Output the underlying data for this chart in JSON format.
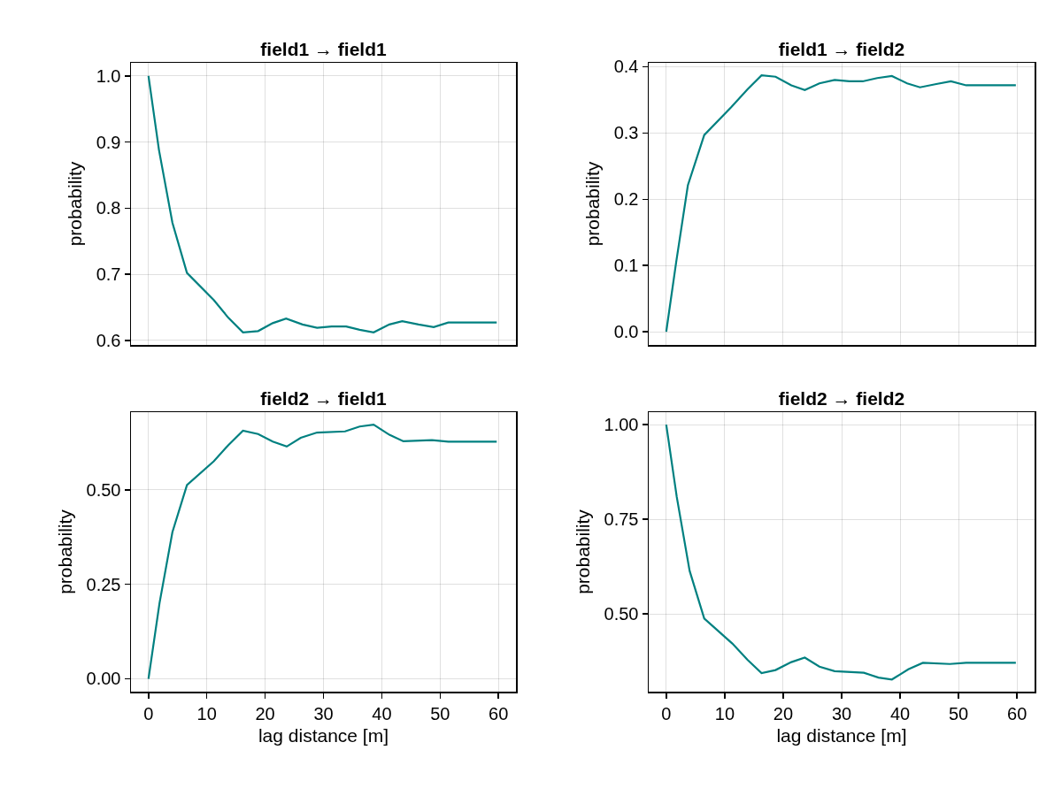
{
  "chart_data": [
    {
      "type": "line",
      "title": "field1 → field1",
      "ylabel": "probability",
      "xlim": [
        -3,
        63
      ],
      "xticks": [
        0,
        10,
        20,
        30,
        40,
        50,
        60
      ],
      "ylim": [
        0.593,
        1.02
      ],
      "yticks": [
        {
          "value": 0.6,
          "label": "0.6"
        },
        {
          "value": 0.7,
          "label": "0.7"
        },
        {
          "value": 0.8,
          "label": "0.8"
        },
        {
          "value": 0.9,
          "label": "0.9"
        },
        {
          "value": 1.0,
          "label": "1.0"
        }
      ],
      "grid": true,
      "tick_labels": "y",
      "marker": "none",
      "line_style": "solid",
      "series": [
        {
          "color": "#008080",
          "x": [
            0,
            1.8,
            4.1,
            6.6,
            11.2,
            13.7,
            16.2,
            18.8,
            21.3,
            23.6,
            26.4,
            28.9,
            31.4,
            33.9,
            36.2,
            38.6,
            41.3,
            43.5,
            46.3,
            48.9,
            51.4,
            59.7
          ],
          "values": [
            1.0,
            0.888,
            0.778,
            0.702,
            0.661,
            0.634,
            0.612,
            0.614,
            0.626,
            0.633,
            0.624,
            0.619,
            0.621,
            0.621,
            0.616,
            0.612,
            0.624,
            0.629,
            0.624,
            0.62,
            0.627,
            0.627
          ]
        }
      ]
    },
    {
      "type": "line",
      "title": "field1 → field2",
      "ylabel": "probability",
      "xlim": [
        -3,
        63
      ],
      "xticks": [
        0,
        10,
        20,
        30,
        40,
        50,
        60
      ],
      "ylim": [
        -0.02,
        0.406
      ],
      "yticks": [
        {
          "value": 0,
          "label": "0.0"
        },
        {
          "value": 0.1,
          "label": "0.1"
        },
        {
          "value": 0.2,
          "label": "0.2"
        },
        {
          "value": 0.3,
          "label": "0.3"
        },
        {
          "value": 0.4,
          "label": "0.4"
        }
      ],
      "grid": true,
      "tick_labels": "y",
      "marker": "none",
      "line_style": "solid",
      "series": [
        {
          "color": "#008080",
          "x": [
            0,
            1.7,
            3.7,
            6.5,
            11.1,
            13.9,
            16.3,
            18.7,
            21.4,
            23.7,
            26.2,
            28.8,
            31.3,
            33.6,
            36.1,
            38.6,
            41.2,
            43.4,
            46.2,
            48.7,
            51.3,
            59.8
          ],
          "values": [
            0,
            0.105,
            0.221,
            0.297,
            0.339,
            0.366,
            0.387,
            0.385,
            0.372,
            0.365,
            0.375,
            0.38,
            0.378,
            0.378,
            0.383,
            0.386,
            0.375,
            0.369,
            0.374,
            0.378,
            0.372,
            0.372
          ]
        }
      ]
    },
    {
      "type": "line",
      "title": "field2 → field1",
      "xlabel": "lag distance [m]",
      "ylabel": "probability",
      "xlim": [
        -3,
        63
      ],
      "xticks": [
        0,
        10,
        20,
        30,
        40,
        50,
        60
      ],
      "ylim": [
        -0.034,
        0.706
      ],
      "yticks": [
        {
          "value": 0,
          "label": "0.00"
        },
        {
          "value": 0.25,
          "label": "0.25"
        },
        {
          "value": 0.5,
          "label": "0.50"
        }
      ],
      "grid": true,
      "marker": "none",
      "line_style": "solid",
      "series": [
        {
          "color": "#008080",
          "x": [
            0,
            1.9,
            4.1,
            6.6,
            11.2,
            13.7,
            16.2,
            18.8,
            21.3,
            23.7,
            26.1,
            28.9,
            33.7,
            36.2,
            38.6,
            41.3,
            43.7,
            48.6,
            51.4,
            59.7
          ],
          "values": [
            0,
            0.201,
            0.388,
            0.513,
            0.576,
            0.619,
            0.657,
            0.648,
            0.628,
            0.615,
            0.638,
            0.652,
            0.655,
            0.668,
            0.673,
            0.646,
            0.629,
            0.632,
            0.628,
            0.628
          ]
        }
      ]
    },
    {
      "type": "line",
      "title": "field2 → field2",
      "xlabel": "lag distance [m]",
      "ylabel": "probability",
      "xlim": [
        -3,
        63
      ],
      "xticks": [
        0,
        10,
        20,
        30,
        40,
        50,
        60
      ],
      "ylim": [
        0.295,
        1.033
      ],
      "yticks": [
        {
          "value": 0.5,
          "label": "0.50"
        },
        {
          "value": 0.75,
          "label": "0.75"
        },
        {
          "value": 1.0,
          "label": "1.00"
        }
      ],
      "grid": true,
      "marker": "none",
      "line_style": "solid",
      "series": [
        {
          "color": "#008080",
          "x": [
            0,
            1.8,
            4.0,
            6.5,
            11.3,
            13.9,
            16.3,
            18.7,
            21.4,
            23.7,
            26.2,
            28.8,
            33.8,
            36.3,
            38.6,
            41.4,
            43.9,
            48.5,
            51.3,
            59.8
          ],
          "values": [
            1.0,
            0.809,
            0.614,
            0.488,
            0.422,
            0.379,
            0.344,
            0.352,
            0.373,
            0.385,
            0.361,
            0.349,
            0.345,
            0.332,
            0.327,
            0.354,
            0.371,
            0.368,
            0.371,
            0.371
          ]
        }
      ]
    }
  ]
}
